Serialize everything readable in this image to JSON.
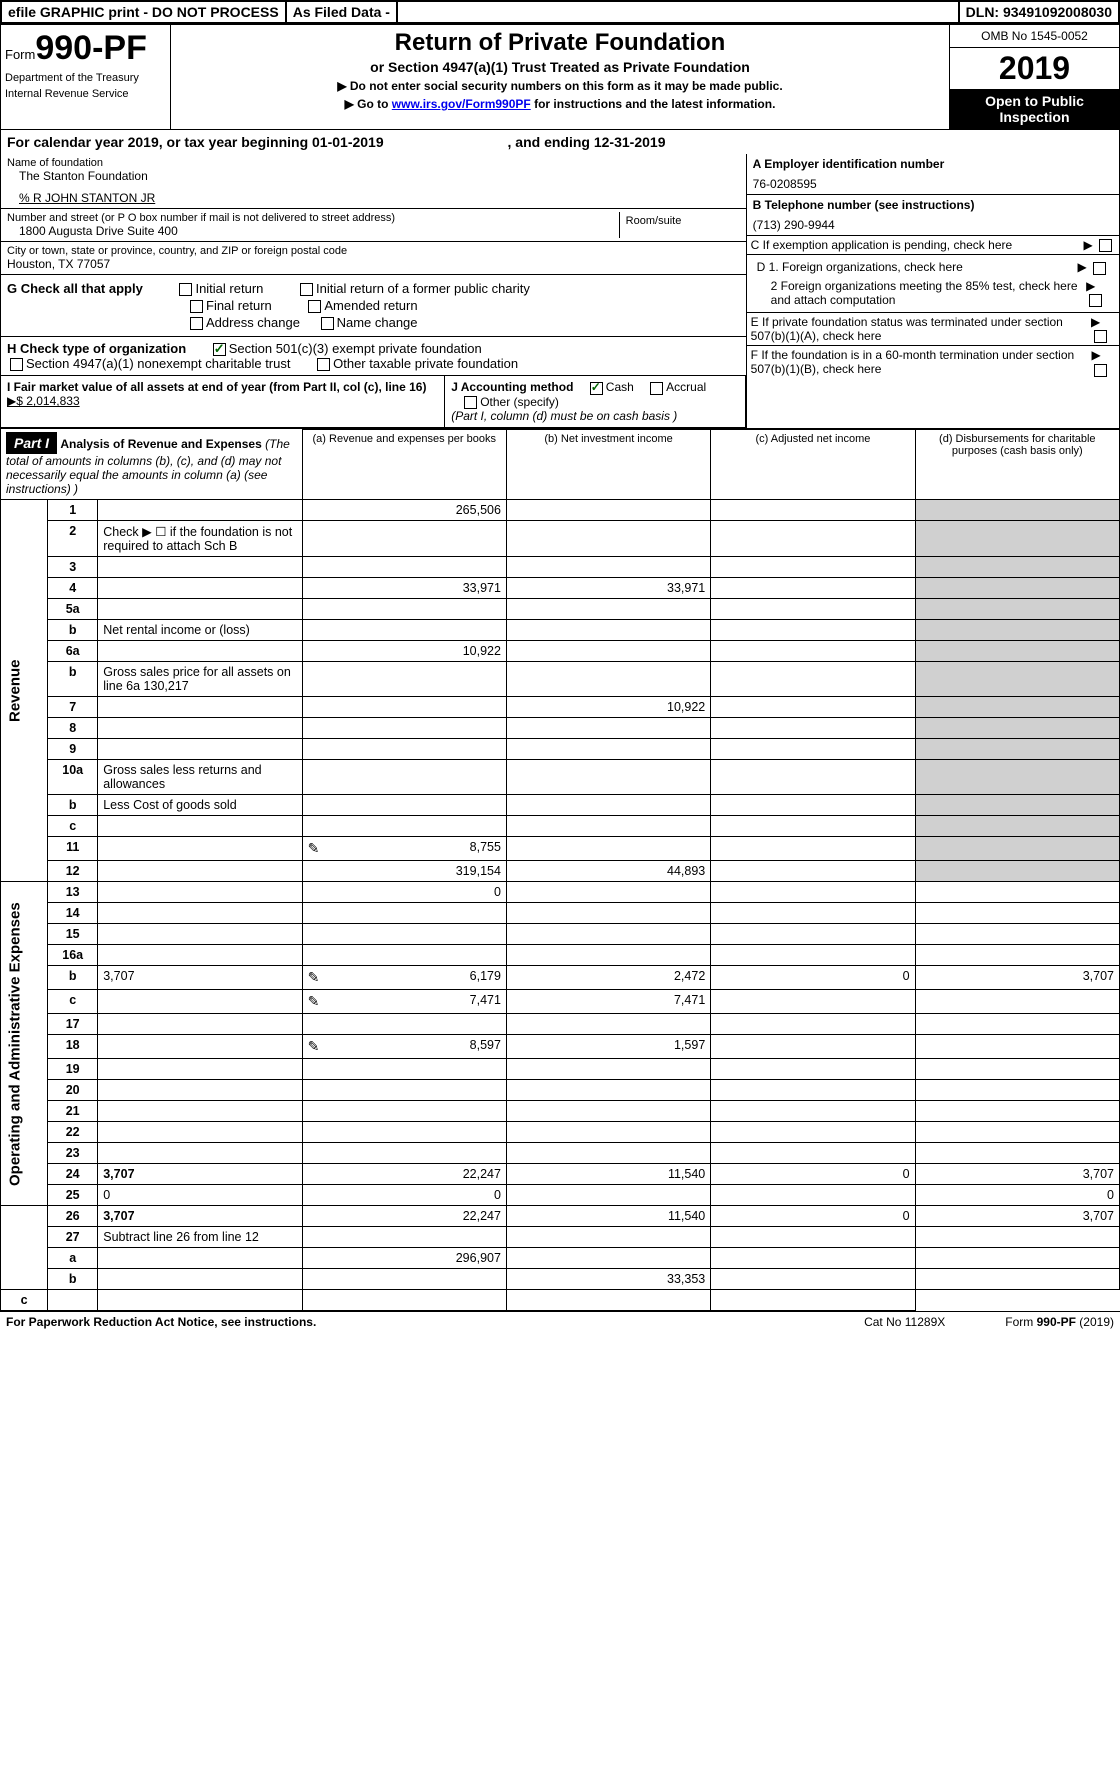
{
  "top": {
    "efile": "efile GRAPHIC print - DO NOT PROCESS",
    "asFiled": "As Filed Data -",
    "dln": "DLN: 93491092008030"
  },
  "header": {
    "formPrefix": "Form",
    "formNo": "990-PF",
    "dept1": "Department of the Treasury",
    "dept2": "Internal Revenue Service",
    "title": "Return of Private Foundation",
    "subtitle": "or Section 4947(a)(1) Trust Treated as Private Foundation",
    "hint1": "▶ Do not enter social security numbers on this form as it may be made public.",
    "hint2a": "▶ Go to ",
    "hint2link": "www.irs.gov/Form990PF",
    "hint2b": " for instructions and the latest information.",
    "omb": "OMB No 1545-0052",
    "year": "2019",
    "openPublic": "Open to Public Inspection"
  },
  "calYear": {
    "text": "For calendar year 2019, or tax year beginning 01-01-2019",
    "ending": ", and ending 12-31-2019"
  },
  "foundation": {
    "nameLabel": "Name of foundation",
    "name": "The Stanton Foundation",
    "co": "% R JOHN STANTON JR",
    "addrLabel": "Number and street (or P O  box number if mail is not delivered to street address)",
    "addr": "1800 Augusta Drive Suite 400",
    "roomLabel": "Room/suite",
    "cityLabel": "City or town, state or province, country, and ZIP or foreign postal code",
    "city": "Houston, TX  77057"
  },
  "right": {
    "A": "A Employer identification number",
    "Aval": "76-0208595",
    "B": "B Telephone number (see instructions)",
    "Bval": "(713) 290-9944",
    "C": "C If exemption application is pending, check here",
    "D1": "D 1. Foreign organizations, check here",
    "D2": "2 Foreign organizations meeting the 85% test, check here and attach computation",
    "E": "E  If private foundation status was terminated under section 507(b)(1)(A), check here",
    "F": "F  If the foundation is in a 60-month termination under section 507(b)(1)(B), check here"
  },
  "G": {
    "label": "G Check all that apply",
    "opts": [
      "Initial return",
      "Initial return of a former public charity",
      "Final return",
      "Amended return",
      "Address change",
      "Name change"
    ]
  },
  "H": {
    "label": "H Check type of organization",
    "opt1": "Section 501(c)(3) exempt private foundation",
    "opt2": "Section 4947(a)(1) nonexempt charitable trust",
    "opt3": "Other taxable private foundation"
  },
  "I": {
    "label": "I Fair market value of all assets at end of year (from Part II, col  (c), line 16) ",
    "val": "▶$  2,014,833"
  },
  "J": {
    "label": "J Accounting method",
    "cash": "Cash",
    "accrual": "Accrual",
    "other": "Other (specify)",
    "note": "(Part I, column (d) must be on cash basis )"
  },
  "partI": {
    "hdr": "Part I",
    "title": "Analysis of Revenue and Expenses",
    "note": " (The total of amounts in columns (b), (c), and (d) may not necessarily equal the amounts in column (a) (see instructions) )",
    "colA": "(a) Revenue and expenses per books",
    "colB": "(b) Net investment income",
    "colC": "(c) Adjusted net income",
    "colD": "(d) Disbursements for charitable purposes (cash basis only)",
    "revenueLabel": "Revenue",
    "opexLabel": "Operating and Administrative Expenses"
  },
  "rows": [
    {
      "n": "1",
      "d": "",
      "a": "265,506",
      "b": "",
      "c": "",
      "greyD": true
    },
    {
      "n": "2",
      "d": "Check ▶ ☐ if the foundation is not required to attach Sch  B"
    },
    {
      "n": "3",
      "d": "",
      "a": "",
      "b": "",
      "c": ""
    },
    {
      "n": "4",
      "d": "",
      "a": "33,971",
      "b": "33,971",
      "c": ""
    },
    {
      "n": "5a",
      "d": "",
      "a": "",
      "b": "",
      "c": ""
    },
    {
      "n": "b",
      "d": "Net rental income or (loss)"
    },
    {
      "n": "6a",
      "d": "",
      "a": "10,922",
      "b": "",
      "c": ""
    },
    {
      "n": "b",
      "d": "Gross sales price for all assets on line 6a         130,217"
    },
    {
      "n": "7",
      "d": "",
      "a": "",
      "b": "10,922",
      "c": ""
    },
    {
      "n": "8",
      "d": "",
      "a": "",
      "b": "",
      "c": ""
    },
    {
      "n": "9",
      "d": "",
      "a": "",
      "b": "",
      "c": ""
    },
    {
      "n": "10a",
      "d": "Gross sales less returns and allowances"
    },
    {
      "n": "b",
      "d": "Less  Cost of goods sold"
    },
    {
      "n": "c",
      "d": "",
      "a": "",
      "b": "",
      "c": ""
    },
    {
      "n": "11",
      "d": "",
      "icon": true,
      "a": "8,755",
      "b": "",
      "c": ""
    },
    {
      "n": "12",
      "d": "",
      "bold": true,
      "a": "319,154",
      "b": "44,893",
      "c": ""
    },
    {
      "n": "13",
      "d": "",
      "a": "0",
      "b": "",
      "c": ""
    },
    {
      "n": "14",
      "d": "",
      "a": "",
      "b": "",
      "c": ""
    },
    {
      "n": "15",
      "d": "",
      "a": "",
      "b": "",
      "c": ""
    },
    {
      "n": "16a",
      "d": "",
      "a": "",
      "b": "",
      "c": ""
    },
    {
      "n": "b",
      "d": "3,707",
      "icon": true,
      "a": "6,179",
      "b": "2,472",
      "c": "0"
    },
    {
      "n": "c",
      "d": "",
      "icon": true,
      "a": "7,471",
      "b": "7,471",
      "c": ""
    },
    {
      "n": "17",
      "d": "",
      "a": "",
      "b": "",
      "c": ""
    },
    {
      "n": "18",
      "d": "",
      "icon": true,
      "a": "8,597",
      "b": "1,597",
      "c": ""
    },
    {
      "n": "19",
      "d": "",
      "a": "",
      "b": "",
      "c": ""
    },
    {
      "n": "20",
      "d": "",
      "a": "",
      "b": "",
      "c": ""
    },
    {
      "n": "21",
      "d": "",
      "a": "",
      "b": "",
      "c": ""
    },
    {
      "n": "22",
      "d": "",
      "a": "",
      "b": "",
      "c": ""
    },
    {
      "n": "23",
      "d": "",
      "a": "",
      "b": "",
      "c": ""
    },
    {
      "n": "24",
      "d": "3,707",
      "bold": true,
      "a": "22,247",
      "b": "11,540",
      "c": "0"
    },
    {
      "n": "25",
      "d": "0",
      "a": "0",
      "b": "",
      "c": ""
    },
    {
      "n": "26",
      "d": "3,707",
      "bold": true,
      "a": "22,247",
      "b": "11,540",
      "c": "0"
    },
    {
      "n": "27",
      "d": "Subtract line 26 from line 12"
    },
    {
      "n": "a",
      "d": "",
      "bold": true,
      "a": "296,907",
      "b": "",
      "c": ""
    },
    {
      "n": "b",
      "d": "",
      "bold": true,
      "a": "",
      "b": "33,353",
      "c": ""
    },
    {
      "n": "c",
      "d": "",
      "bold": true,
      "a": "",
      "b": "",
      "c": ""
    }
  ],
  "footer": {
    "left": "For Paperwork Reduction Act Notice, see instructions.",
    "mid": "Cat  No  11289X",
    "right": "Form 990-PF (2019)"
  }
}
